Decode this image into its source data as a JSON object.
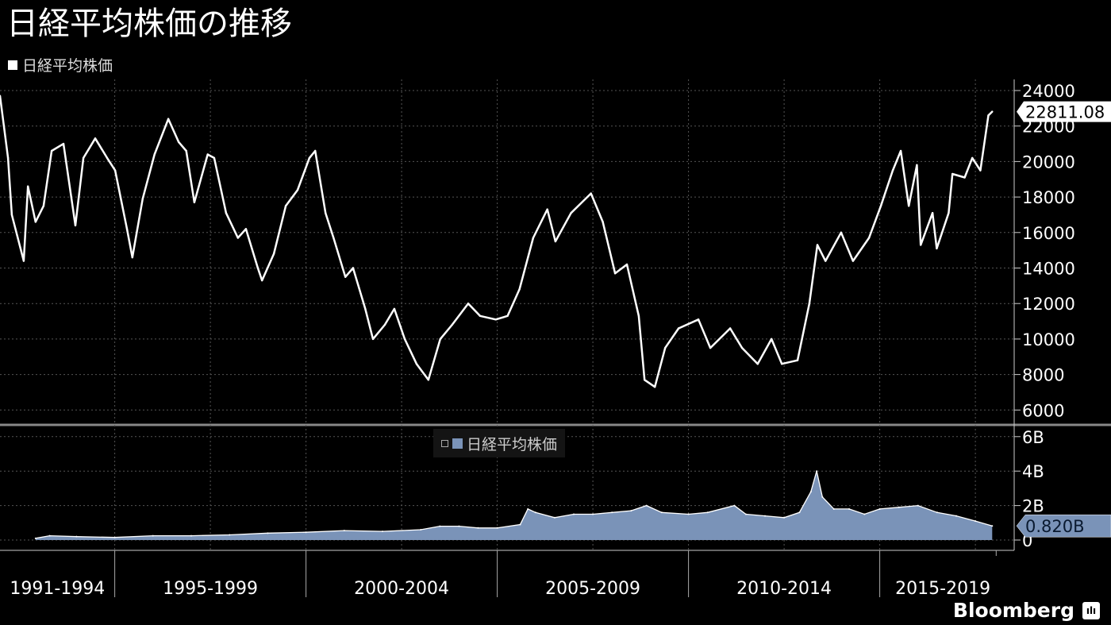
{
  "chart_data": [
    {
      "type": "line",
      "title": "日経平均株価の推移",
      "legend": [
        "日経平均株価"
      ],
      "ylim": [
        5000,
        24500
      ],
      "yticks": [
        6000,
        8000,
        10000,
        12000,
        14000,
        16000,
        18000,
        20000,
        22000,
        24000
      ],
      "ytick_labels": [
        "6000",
        "8000",
        "10000",
        "12000",
        "14000",
        "16000",
        "18000",
        "20000",
        "22000",
        "24000"
      ],
      "last_value_label": "22811.08",
      "line_color": "#ffffff",
      "grid": true,
      "x_range": [
        1992.0,
        2018.3
      ],
      "series": [
        {
          "name": "日経平均株価",
          "x": [
            1992.0,
            1992.21,
            1992.31,
            1992.62,
            1992.73,
            1992.93,
            1993.14,
            1993.35,
            1993.66,
            1993.97,
            1994.18,
            1994.49,
            1994.8,
            1995.01,
            1995.32,
            1995.46,
            1995.73,
            1996.04,
            1996.4,
            1996.67,
            1996.87,
            1997.08,
            1997.43,
            1997.6,
            1997.91,
            1998.22,
            1998.43,
            1998.74,
            1998.85,
            1999.16,
            1999.47,
            1999.78,
            2000.09,
            2000.24,
            2000.51,
            2000.72,
            2001.03,
            2001.23,
            2001.55,
            2001.75,
            2002.06,
            2002.31,
            2002.58,
            2002.89,
            2003.2,
            2003.51,
            2003.82,
            2004.24,
            2004.55,
            2004.96,
            2005.27,
            2005.58,
            2005.94,
            2006.31,
            2006.52,
            2006.93,
            2007.45,
            2007.76,
            2008.08,
            2008.39,
            2008.7,
            2008.85,
            2009.12,
            2009.39,
            2009.74,
            2010.26,
            2010.57,
            2011.09,
            2011.4,
            2011.81,
            2012.17,
            2012.44,
            2012.85,
            2013.16,
            2013.37,
            2013.58,
            2013.99,
            2014.3,
            2014.72,
            2015.03,
            2015.34,
            2015.55,
            2015.76,
            2015.97,
            2016.07,
            2016.38,
            2016.49,
            2016.8,
            2016.9,
            2017.22,
            2017.42,
            2017.63,
            2017.84,
            2017.94
          ],
          "y": [
            23700,
            20200,
            17000,
            14400,
            18600,
            16600,
            17500,
            20600,
            21000,
            16400,
            20200,
            21300,
            20200,
            19500,
            16200,
            14600,
            17900,
            20400,
            22400,
            21100,
            20600,
            17700,
            20400,
            20200,
            17100,
            15700,
            16200,
            14000,
            13300,
            14800,
            17500,
            18400,
            20200,
            20600,
            17100,
            15700,
            13500,
            14000,
            11700,
            10000,
            10800,
            11700,
            10000,
            8600,
            7700,
            10000,
            10800,
            12000,
            11300,
            11100,
            11300,
            12800,
            15700,
            17300,
            15500,
            17100,
            18200,
            16600,
            13700,
            14200,
            11300,
            7700,
            7300,
            9500,
            10600,
            11100,
            9500,
            10600,
            9500,
            8600,
            10000,
            8600,
            8800,
            12000,
            15300,
            14400,
            16000,
            14400,
            15700,
            17500,
            19500,
            20600,
            17500,
            19800,
            15300,
            17100,
            15100,
            17100,
            19300,
            19100,
            20200,
            19500,
            22600,
            22811.08
          ]
        }
      ]
    },
    {
      "type": "area",
      "legend": [
        "日経平均株価"
      ],
      "ylim": [
        -0.6,
        6.5
      ],
      "yticks": [
        0,
        2,
        4,
        6
      ],
      "ytick_labels": [
        "0",
        "2B",
        "4B",
        "6B"
      ],
      "last_value_label": "0.820B",
      "fill_color": "#7a93b8",
      "line_color": "#ffffff",
      "unit": "B",
      "series": [
        {
          "name": "日経平均株価",
          "x": [
            1992.93,
            1993.3,
            1994.0,
            1995.0,
            1996.0,
            1997.0,
            1998.0,
            1999.0,
            2000.0,
            2001.0,
            2002.0,
            2003.0,
            2003.5,
            2004.0,
            2004.5,
            2005.0,
            2005.6,
            2005.8,
            2006.0,
            2006.5,
            2007.0,
            2007.5,
            2008.0,
            2008.5,
            2008.9,
            2009.3,
            2010.0,
            2010.5,
            2011.2,
            2011.5,
            2012.0,
            2012.5,
            2012.9,
            2013.2,
            2013.35,
            2013.5,
            2013.8,
            2014.2,
            2014.6,
            2015.0,
            2015.5,
            2016.0,
            2016.5,
            2017.0,
            2017.5,
            2017.94
          ],
          "y": [
            0.1,
            0.25,
            0.2,
            0.15,
            0.25,
            0.25,
            0.3,
            0.4,
            0.45,
            0.55,
            0.5,
            0.6,
            0.8,
            0.8,
            0.7,
            0.7,
            0.9,
            1.8,
            1.6,
            1.3,
            1.5,
            1.5,
            1.6,
            1.7,
            2.0,
            1.6,
            1.5,
            1.6,
            2.0,
            1.5,
            1.4,
            1.3,
            1.6,
            2.8,
            4.0,
            2.5,
            1.8,
            1.8,
            1.5,
            1.8,
            1.9,
            2.0,
            1.6,
            1.4,
            1.1,
            0.82
          ]
        }
      ]
    }
  ],
  "x_axis": {
    "labels": [
      "1991-1994",
      "1995-1999",
      "2000-2004",
      "2005-2009",
      "2010-2014",
      "2015-2019"
    ]
  },
  "brand": "Bloomberg"
}
